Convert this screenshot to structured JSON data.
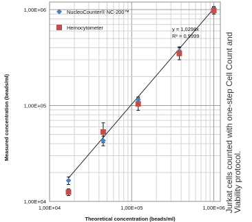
{
  "chart_data": {
    "type": "scatter",
    "x_scale": "log",
    "y_scale": "log",
    "xlim": [
      10000,
      1200000
    ],
    "ylim": [
      10000,
      1200000
    ],
    "x_ticks": [
      10000,
      100000,
      1000000
    ],
    "y_ticks": [
      10000,
      100000,
      1000000
    ],
    "x_tick_labels": [
      "1,00E+04",
      "1,00E+05",
      "1,00E+06"
    ],
    "y_tick_labels": [
      "1,00E+04",
      "1,00E+05",
      "1,00E+06"
    ],
    "xlabel": "Theoretical concentration (beads/ml)",
    "ylabel": "Measured concentration (beads/ml)",
    "grid": true,
    "legend_position": "top-left",
    "series": [
      {
        "name": "NucleoCounter® NC-200™",
        "marker": "diamond",
        "color": "#4f81bd",
        "points": [
          {
            "x": 17000,
            "y": 16500,
            "err_low": 15000,
            "err_high": 18000
          },
          {
            "x": 45000,
            "y": 43000,
            "err_low": 38000,
            "err_high": 48000
          },
          {
            "x": 120000,
            "y": 115000,
            "err_low": 107000,
            "err_high": 123000
          },
          {
            "x": 380000,
            "y": 370000,
            "err_low": 330000,
            "err_high": 410000
          },
          {
            "x": 1000000,
            "y": 1020000,
            "err_low": 960000,
            "err_high": 1080000
          }
        ]
      },
      {
        "name": "Hemocytometer",
        "marker": "square",
        "color": "#c0504d",
        "points": [
          {
            "x": 17000,
            "y": 12500,
            "err_low": 11500,
            "err_high": 13500
          },
          {
            "x": 45000,
            "y": 53000,
            "err_low": 41000,
            "err_high": 66000
          },
          {
            "x": 120000,
            "y": 104000,
            "err_low": 89000,
            "err_high": 120000
          },
          {
            "x": 380000,
            "y": 350000,
            "err_low": 300000,
            "err_high": 400000
          },
          {
            "x": 1000000,
            "y": 980000,
            "err_low": 900000,
            "err_high": 1060000
          }
        ]
      }
    ],
    "trendline": {
      "slope": 1.0298,
      "x_range": [
        17000,
        1000000
      ],
      "equation_label": "y = 1,0298x",
      "r2_label": "R² = 0,9999"
    }
  },
  "caption": "Jurkat cells counted with one-step Cell Count and Viability protocol."
}
